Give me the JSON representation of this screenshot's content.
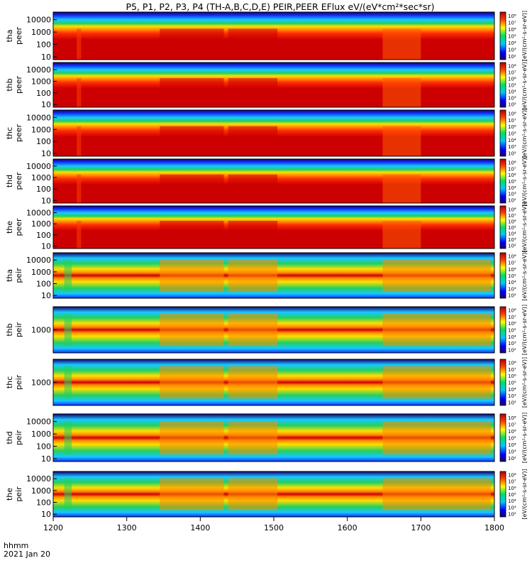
{
  "chart_data": {
    "type": "heatmap",
    "title": "P5, P1, P2, P3, P4 (TH-A,B,C,D,E) PEIR,PEER EFlux eV/(eV*cm²*sec*sr)",
    "xlabel": "hhmm",
    "date_label": "2021 Jan 20",
    "x_ticks": [
      "1200",
      "1300",
      "1400",
      "1500",
      "1600",
      "1700",
      "1800"
    ],
    "xlim": [
      1200,
      1800
    ],
    "colorbar_label": "[eV/(cm²-s-sr-eV)]",
    "colorbar_ticks": [
      "10²",
      "10³",
      "10⁴",
      "10⁵",
      "10⁶",
      "10⁷",
      "10⁸"
    ],
    "panels": [
      {
        "id": "tha-peer",
        "probe": "tha",
        "instrument": "peer",
        "y_ticks": [
          "10",
          "100",
          "1000",
          "10000"
        ]
      },
      {
        "id": "thb-peer",
        "probe": "thb",
        "instrument": "peer",
        "y_ticks": [
          "10",
          "100",
          "1000",
          "10000"
        ]
      },
      {
        "id": "thc-peer",
        "probe": "thc",
        "instrument": "peer",
        "y_ticks": [
          "10",
          "100",
          "1000",
          "10000"
        ]
      },
      {
        "id": "thd-peer",
        "probe": "thd",
        "instrument": "peer",
        "y_ticks": [
          "10",
          "100",
          "1000",
          "10000"
        ]
      },
      {
        "id": "the-peer",
        "probe": "the",
        "instrument": "peer",
        "y_ticks": [
          "10",
          "100",
          "1000",
          "10000"
        ]
      },
      {
        "id": "tha-peir",
        "probe": "tha",
        "instrument": "peir",
        "y_ticks": [
          "10",
          "100",
          "1000",
          "10000"
        ]
      },
      {
        "id": "thb-peir",
        "probe": "thb",
        "instrument": "peir",
        "y_ticks": [
          "1000"
        ]
      },
      {
        "id": "thc-peir",
        "probe": "thc",
        "instrument": "peir",
        "y_ticks": [
          "1000"
        ]
      },
      {
        "id": "thd-peir",
        "probe": "thd",
        "instrument": "peir",
        "y_ticks": [
          "10",
          "100",
          "1000",
          "10000"
        ]
      },
      {
        "id": "the-peir",
        "probe": "the",
        "instrument": "peir",
        "y_ticks": [
          "10",
          "100",
          "1000",
          "10000"
        ]
      }
    ]
  }
}
